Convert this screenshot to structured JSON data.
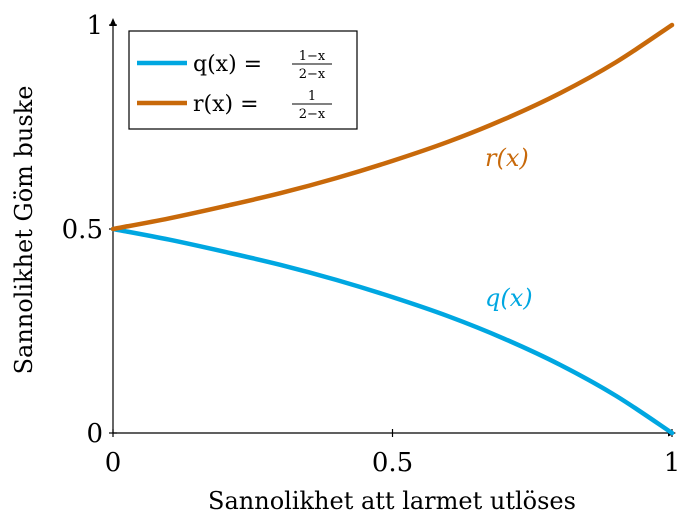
{
  "chart_data": {
    "type": "line",
    "xlabel": "Sannolikhet att larmet utlöses",
    "ylabel": "Sannolikhet Göm buske",
    "xlim": [
      0,
      1
    ],
    "ylim": [
      0,
      1
    ],
    "x_ticks": [
      "0",
      "0.5",
      "1"
    ],
    "y_ticks": [
      "0",
      "0.5",
      "1"
    ],
    "grid": false,
    "legend_position": "top-left",
    "x": [
      0,
      0.1,
      0.2,
      0.3,
      0.4,
      0.5,
      0.6,
      0.7,
      0.8,
      0.9,
      1
    ],
    "series": [
      {
        "name": "q(x) = (1−x)/(2−x)",
        "legend_lhs": "q(x) =",
        "legend_num": "1−x",
        "legend_den": "2−x",
        "curve_label": "q(x)",
        "color": "#00a7e1",
        "values": [
          0.5,
          0.474,
          0.444,
          0.412,
          0.375,
          0.333,
          0.286,
          0.231,
          0.167,
          0.091,
          0
        ]
      },
      {
        "name": "r(x) = 1/(2−x)",
        "legend_lhs": "r(x) =",
        "legend_num": "1",
        "legend_den": "2−x",
        "curve_label": "r(x)",
        "color": "#c8690a",
        "values": [
          0.5,
          0.526,
          0.556,
          0.588,
          0.625,
          0.667,
          0.714,
          0.769,
          0.833,
          0.909,
          1
        ]
      }
    ]
  }
}
